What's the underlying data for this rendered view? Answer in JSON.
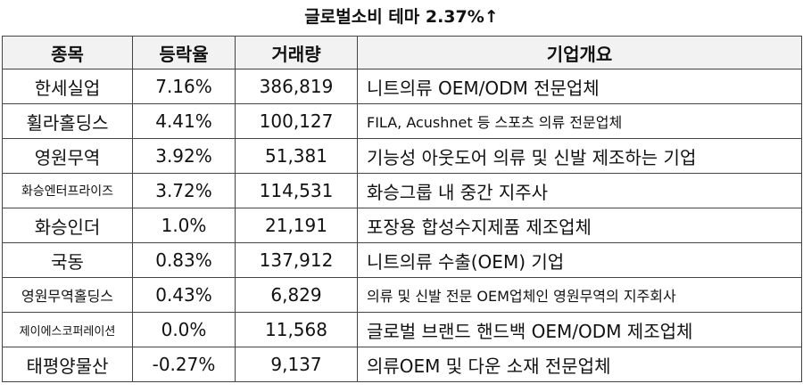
{
  "header": {
    "title": "글로벌소비 테마 2.37%↑"
  },
  "table": {
    "columns": [
      "종목",
      "등락율",
      "거래량",
      "기업개요"
    ],
    "rows": [
      [
        "한세실업",
        "7.16%",
        "386,819",
        "니트의류 OEM/ODM 전문업체"
      ],
      [
        "휠라홀딩스",
        "4.41%",
        "100,127",
        "FILA, Acushnet 등 스포츠 의류 전문업체"
      ],
      [
        "영원무역",
        "3.92%",
        "51,381",
        "기능성 아웃도어 의류 및 신발 제조하는 기업"
      ],
      [
        "화승엔터프라이즈",
        "3.72%",
        "114,531",
        "화승그룹 내 중간 지주사"
      ],
      [
        "화승인더",
        "1.0%",
        "21,191",
        "포장용 합성수지제품 제조업체"
      ],
      [
        "국동",
        "0.83%",
        "137,912",
        "니트의류 수출(OEM) 기업"
      ],
      [
        "영원무역홀딩스",
        "0.43%",
        "6,829",
        "의류 및 신발 전문 OEM업체인 영원무역의 지주회사"
      ],
      [
        "제이에스코퍼레이션",
        "0.0%",
        "11,568",
        "글로벌 브랜드 핸드백 OEM/ODM 제조업체"
      ],
      [
        "태평양물산",
        "-0.27%",
        "9,137",
        "의류OEM 및 다운 소재 전문업체"
      ]
    ]
  }
}
